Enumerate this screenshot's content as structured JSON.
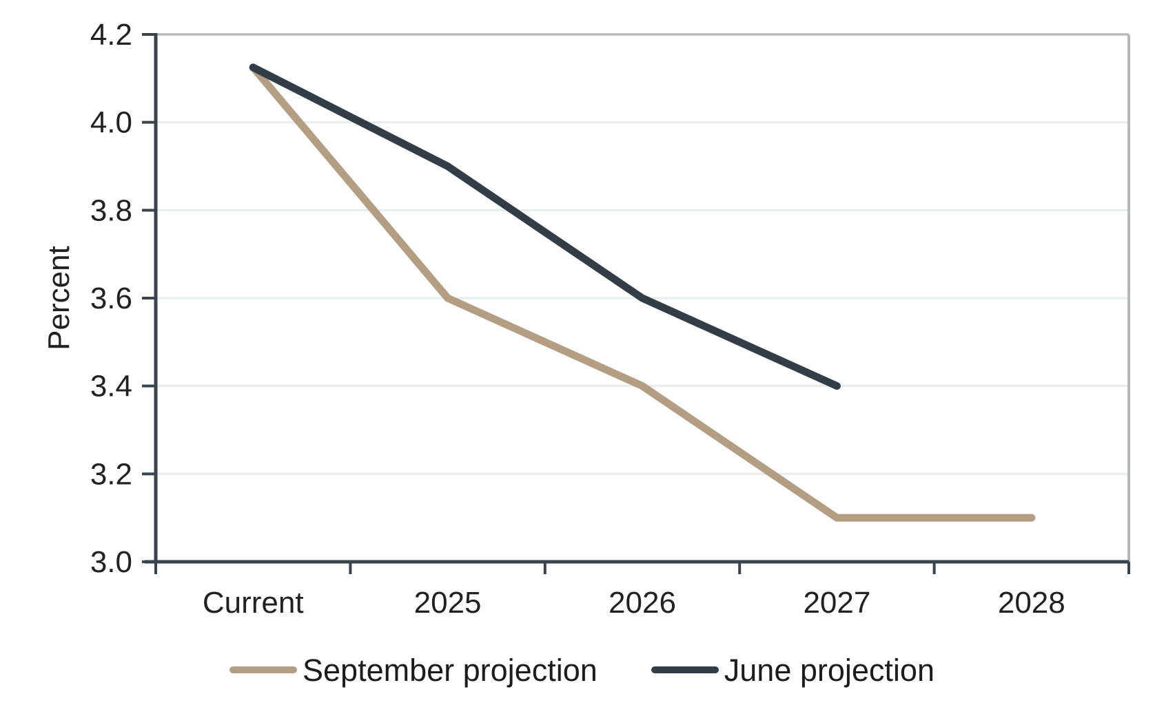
{
  "chart_data": {
    "type": "line",
    "title": "",
    "xlabel": "",
    "ylabel": "Percent",
    "categories": [
      "Current",
      "2025",
      "2026",
      "2027",
      "2028"
    ],
    "series": [
      {
        "name": "September projection",
        "color": "#b39d83",
        "values": [
          4.125,
          3.6,
          3.4,
          3.1,
          3.1
        ]
      },
      {
        "name": "June projection",
        "color": "#333d47",
        "values": [
          4.125,
          3.9,
          3.6,
          3.4,
          null
        ]
      }
    ],
    "ylim": [
      3.0,
      4.2
    ],
    "ytick_labels": [
      "3.0",
      "3.2",
      "3.4",
      "3.6",
      "3.8",
      "4.0",
      "4.2"
    ],
    "grid": "horizontal",
    "legend_position": "bottom"
  },
  "colors": {
    "axis": "#39434d",
    "grid_light": "#e7ecee",
    "grid_border": "#b5b8ba",
    "tick_text": "#212121"
  }
}
